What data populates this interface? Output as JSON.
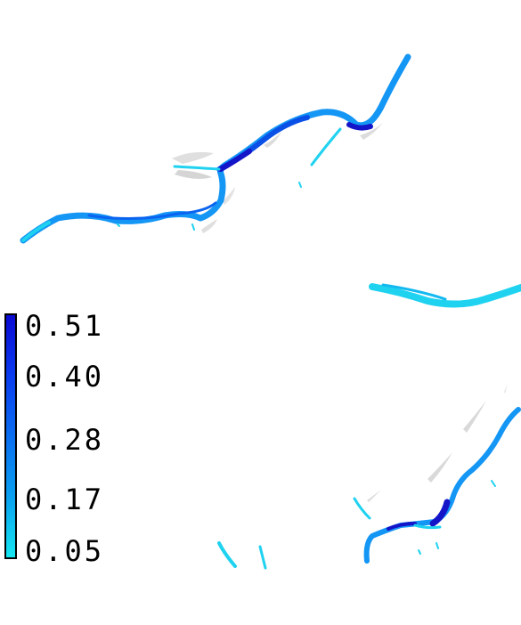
{
  "legend": {
    "color_max": "#0a0ad2",
    "color_min": "#14e6f0",
    "ticks": [
      "0.51",
      "0.40",
      "0.28",
      "0.17",
      "0.05"
    ]
  },
  "colors": {
    "channel_dark": "#1414c8",
    "channel_mid": "#0a64f0",
    "channel_light": "#1496f5",
    "channel_cyan": "#1ed2f0",
    "bar_gray": "#b4b4b4"
  }
}
